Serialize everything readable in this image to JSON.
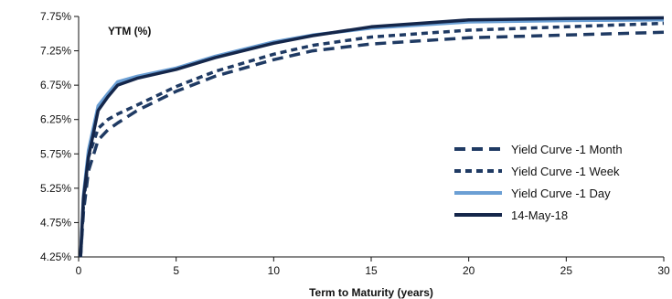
{
  "chart_data": {
    "type": "line",
    "title": "YTM (%)",
    "xlabel": "Term to Maturity (years)",
    "ylabel": "",
    "xlim": [
      0,
      30
    ],
    "ylim": [
      4.25,
      7.75
    ],
    "x_ticks": [
      0,
      5,
      10,
      15,
      20,
      25,
      30
    ],
    "y_ticks": [
      4.25,
      4.75,
      5.25,
      5.75,
      6.25,
      6.75,
      7.25,
      7.75
    ],
    "x_tick_labels": [
      "0",
      "5",
      "10",
      "15",
      "20",
      "25",
      "30"
    ],
    "y_tick_labels": [
      "4.25%",
      "4.75%",
      "5.25%",
      "5.75%",
      "6.25%",
      "6.75%",
      "7.25%",
      "7.75%"
    ],
    "grid": false,
    "legend_position": "right",
    "series": [
      {
        "name": "Yield Curve -1 Month",
        "color": "#1f3a63",
        "style": "long-dash",
        "points": [
          [
            0.1,
            4.25
          ],
          [
            0.25,
            4.9
          ],
          [
            0.5,
            5.5
          ],
          [
            1,
            5.95
          ],
          [
            1.5,
            6.1
          ],
          [
            2,
            6.2
          ],
          [
            3,
            6.38
          ],
          [
            5,
            6.66
          ],
          [
            7,
            6.88
          ],
          [
            10,
            7.12
          ],
          [
            12,
            7.25
          ],
          [
            15,
            7.35
          ],
          [
            20,
            7.44
          ],
          [
            25,
            7.48
          ],
          [
            30,
            7.52
          ]
        ]
      },
      {
        "name": "Yield Curve -1 Week",
        "color": "#1f3a63",
        "style": "short-dash",
        "points": [
          [
            0.1,
            4.25
          ],
          [
            0.25,
            5.0
          ],
          [
            0.5,
            5.7
          ],
          [
            1,
            6.12
          ],
          [
            1.5,
            6.25
          ],
          [
            2,
            6.33
          ],
          [
            3,
            6.46
          ],
          [
            5,
            6.73
          ],
          [
            7,
            6.95
          ],
          [
            10,
            7.2
          ],
          [
            12,
            7.33
          ],
          [
            15,
            7.45
          ],
          [
            20,
            7.55
          ],
          [
            25,
            7.6
          ],
          [
            30,
            7.65
          ]
        ]
      },
      {
        "name": "Yield Curve -1 Day",
        "color": "#6b9fd4",
        "style": "solid",
        "points": [
          [
            0.1,
            4.25
          ],
          [
            0.25,
            5.15
          ],
          [
            0.5,
            5.8
          ],
          [
            1,
            6.45
          ],
          [
            1.5,
            6.63
          ],
          [
            2,
            6.8
          ],
          [
            3,
            6.88
          ],
          [
            5,
            7.0
          ],
          [
            7,
            7.17
          ],
          [
            10,
            7.38
          ],
          [
            12,
            7.48
          ],
          [
            15,
            7.58
          ],
          [
            20,
            7.67
          ],
          [
            25,
            7.69
          ],
          [
            30,
            7.7
          ]
        ]
      },
      {
        "name": "14-May-18",
        "color": "#14264a",
        "style": "solid",
        "points": [
          [
            0.1,
            4.25
          ],
          [
            0.25,
            5.1
          ],
          [
            0.5,
            5.7
          ],
          [
            1,
            6.38
          ],
          [
            1.5,
            6.58
          ],
          [
            2,
            6.75
          ],
          [
            3,
            6.85
          ],
          [
            5,
            6.98
          ],
          [
            7,
            7.15
          ],
          [
            10,
            7.36
          ],
          [
            12,
            7.47
          ],
          [
            15,
            7.6
          ],
          [
            20,
            7.7
          ],
          [
            25,
            7.72
          ],
          [
            30,
            7.73
          ]
        ]
      }
    ]
  }
}
